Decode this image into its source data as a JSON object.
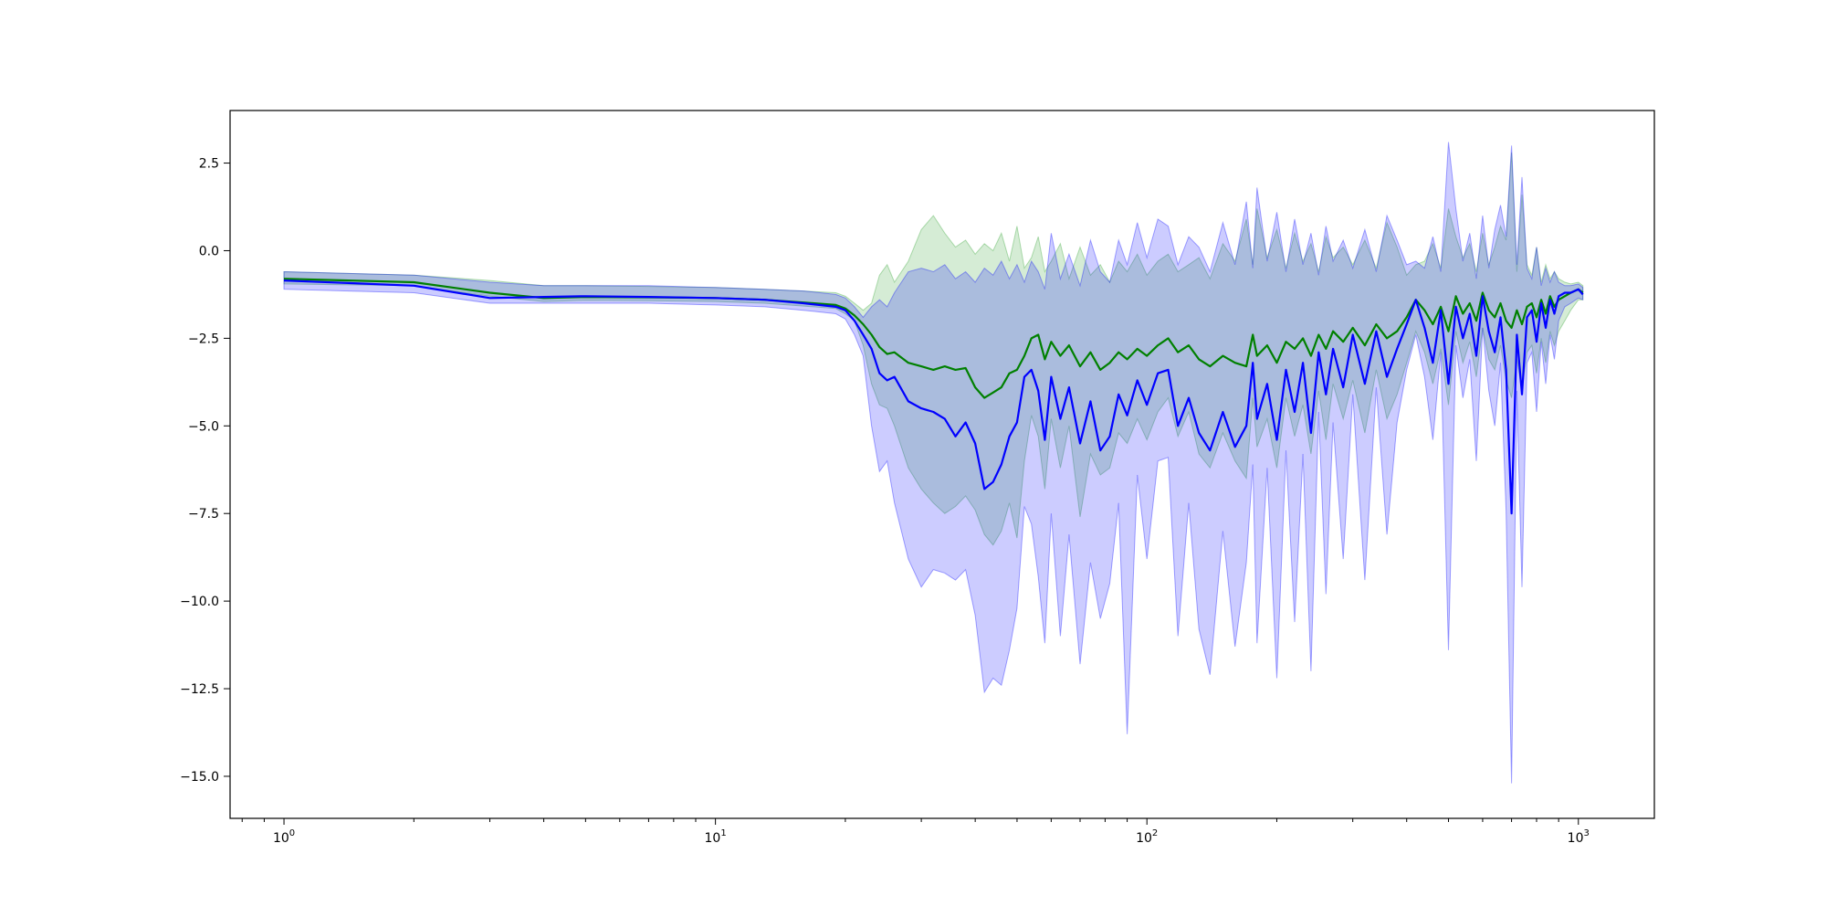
{
  "chart_data": {
    "type": "line",
    "title": "",
    "xlabel": "",
    "ylabel": "",
    "xscale": "log",
    "xlim": [
      0.75,
      1500
    ],
    "ylim": [
      -16.2,
      4.0
    ],
    "grid": false,
    "legend": "none",
    "x_ticks": [
      {
        "value": 1,
        "base": "10",
        "exp": "0"
      },
      {
        "value": 10,
        "base": "10",
        "exp": "1"
      },
      {
        "value": 100,
        "base": "10",
        "exp": "2"
      },
      {
        "value": 1000,
        "base": "10",
        "exp": "3"
      }
    ],
    "y_ticks": [
      {
        "value": 2.5,
        "label": "2.5"
      },
      {
        "value": 0.0,
        "label": "0.0"
      },
      {
        "value": -2.5,
        "label": "−2.5"
      },
      {
        "value": -5.0,
        "label": "−5.0"
      },
      {
        "value": -7.5,
        "label": "−7.5"
      },
      {
        "value": -10.0,
        "label": "−10.0"
      },
      {
        "value": -12.5,
        "label": "−12.5"
      },
      {
        "value": -15.0,
        "label": "−15.0"
      }
    ],
    "series": [
      {
        "color": "#008000",
        "band_color": "#2ca02c",
        "x": [
          1,
          2,
          3,
          4,
          5,
          7,
          10,
          13,
          16,
          19,
          20,
          21,
          22,
          23,
          24,
          25,
          26,
          28,
          30,
          32,
          34,
          36,
          38,
          40,
          42,
          44,
          46,
          48,
          50,
          52,
          54,
          56,
          58,
          60,
          63,
          66,
          70,
          74,
          78,
          82,
          86,
          90,
          95,
          100,
          106,
          112,
          118,
          125,
          132,
          140,
          150,
          160,
          170,
          176,
          180,
          190,
          200,
          210,
          220,
          230,
          240,
          250,
          260,
          270,
          285,
          300,
          320,
          340,
          360,
          380,
          400,
          420,
          440,
          460,
          480,
          500,
          520,
          540,
          560,
          580,
          600,
          620,
          640,
          660,
          680,
          700,
          720,
          740,
          760,
          780,
          800,
          820,
          840,
          860,
          880,
          900,
          930,
          960,
          1000,
          1024
        ],
        "y": [
          -0.8,
          -0.9,
          -1.2,
          -1.35,
          -1.32,
          -1.33,
          -1.35,
          -1.4,
          -1.48,
          -1.55,
          -1.65,
          -1.85,
          -2.1,
          -2.4,
          -2.75,
          -2.95,
          -2.9,
          -3.2,
          -3.3,
          -3.4,
          -3.3,
          -3.4,
          -3.35,
          -3.9,
          -4.2,
          -4.05,
          -3.9,
          -3.5,
          -3.4,
          -3.0,
          -2.5,
          -2.4,
          -3.1,
          -2.6,
          -3.0,
          -2.7,
          -3.3,
          -2.9,
          -3.4,
          -3.2,
          -2.9,
          -3.1,
          -2.8,
          -3.0,
          -2.7,
          -2.5,
          -2.9,
          -2.7,
          -3.1,
          -3.3,
          -3.0,
          -3.2,
          -3.3,
          -2.4,
          -3.0,
          -2.7,
          -3.2,
          -2.6,
          -2.8,
          -2.5,
          -3.0,
          -2.4,
          -2.8,
          -2.3,
          -2.6,
          -2.2,
          -2.7,
          -2.1,
          -2.5,
          -2.3,
          -1.9,
          -1.4,
          -1.7,
          -2.1,
          -1.6,
          -2.3,
          -1.3,
          -1.8,
          -1.5,
          -2.0,
          -1.2,
          -1.7,
          -1.9,
          -1.5,
          -2.0,
          -2.2,
          -1.7,
          -2.1,
          -1.6,
          -1.5,
          -1.9,
          -1.4,
          -1.8,
          -1.3,
          -1.6,
          -1.4,
          -1.3,
          -1.2,
          -1.1,
          -1.2
        ],
        "lower": [
          -0.95,
          -1.0,
          -1.3,
          -1.45,
          -1.42,
          -1.43,
          -1.45,
          -1.5,
          -1.58,
          -1.65,
          -1.8,
          -2.0,
          -2.7,
          -3.8,
          -4.4,
          -4.5,
          -5.0,
          -6.2,
          -6.8,
          -7.2,
          -7.5,
          -7.3,
          -7.0,
          -7.4,
          -8.1,
          -8.4,
          -8.0,
          -7.2,
          -8.2,
          -6.0,
          -4.7,
          -5.3,
          -6.8,
          -4.8,
          -6.2,
          -5.0,
          -7.6,
          -5.8,
          -6.4,
          -6.2,
          -5.2,
          -5.5,
          -4.8,
          -5.4,
          -4.6,
          -4.2,
          -5.3,
          -4.6,
          -5.8,
          -6.2,
          -5.2,
          -6.0,
          -6.5,
          -4.2,
          -5.6,
          -4.8,
          -6.2,
          -4.2,
          -5.3,
          -4.4,
          -5.8,
          -4.0,
          -5.4,
          -3.8,
          -4.8,
          -3.7,
          -5.2,
          -3.4,
          -4.8,
          -4.1,
          -3.2,
          -2.3,
          -2.9,
          -3.8,
          -2.8,
          -4.4,
          -2.3,
          -3.2,
          -2.6,
          -3.6,
          -2.2,
          -3.1,
          -3.4,
          -2.7,
          -3.7,
          -4.2,
          -3.1,
          -4.0,
          -2.9,
          -2.7,
          -3.5,
          -2.5,
          -3.2,
          -2.3,
          -2.7,
          -2.3,
          -2.0,
          -1.7,
          -1.4,
          -1.4
        ],
        "upper": [
          -0.6,
          -0.7,
          -0.85,
          -1.0,
          -1.0,
          -1.02,
          -1.05,
          -1.1,
          -1.15,
          -1.2,
          -1.3,
          -1.5,
          -1.7,
          -1.5,
          -0.7,
          -0.4,
          -0.9,
          -0.3,
          0.6,
          1.0,
          0.5,
          0.1,
          0.3,
          -0.1,
          0.2,
          0.0,
          0.5,
          -0.3,
          0.7,
          -0.5,
          -0.2,
          0.4,
          -0.6,
          -0.3,
          0.2,
          -0.8,
          0.1,
          -0.7,
          -0.4,
          -0.9,
          -0.3,
          -0.6,
          -0.1,
          -0.7,
          -0.3,
          -0.1,
          -0.6,
          -0.4,
          -0.2,
          -0.8,
          0.2,
          -0.3,
          0.9,
          -0.4,
          1.2,
          -0.2,
          0.6,
          -0.5,
          0.5,
          -0.3,
          0.2,
          -0.6,
          0.4,
          -0.2,
          0.1,
          -0.4,
          0.3,
          -0.5,
          0.8,
          0.1,
          -0.7,
          -0.4,
          -0.3,
          0.2,
          -0.5,
          1.2,
          0.4,
          -0.2,
          0.2,
          -0.6,
          0.5,
          -0.4,
          0.1,
          0.7,
          0.3,
          2.8,
          -0.6,
          1.6,
          -0.4,
          -0.7,
          0.1,
          -0.9,
          -0.4,
          -0.8,
          -0.6,
          -0.8,
          -0.9,
          -0.95,
          -0.9,
          -1.0
        ]
      },
      {
        "color": "#0000ff",
        "band_color": "#0000ff",
        "x": [
          1,
          2,
          3,
          4,
          5,
          7,
          10,
          13,
          16,
          19,
          20,
          21,
          22,
          23,
          24,
          25,
          26,
          28,
          30,
          32,
          34,
          36,
          38,
          40,
          42,
          44,
          46,
          48,
          50,
          52,
          54,
          56,
          58,
          60,
          63,
          66,
          70,
          74,
          78,
          82,
          86,
          90,
          95,
          100,
          106,
          112,
          118,
          125,
          132,
          140,
          150,
          160,
          170,
          176,
          180,
          190,
          200,
          210,
          220,
          230,
          240,
          250,
          260,
          270,
          285,
          300,
          320,
          340,
          360,
          380,
          400,
          420,
          440,
          460,
          480,
          500,
          520,
          540,
          560,
          580,
          600,
          620,
          640,
          660,
          680,
          700,
          720,
          740,
          760,
          780,
          800,
          820,
          840,
          860,
          880,
          900,
          930,
          960,
          1000,
          1024
        ],
        "y": [
          -0.85,
          -1.0,
          -1.35,
          -1.32,
          -1.3,
          -1.32,
          -1.35,
          -1.4,
          -1.5,
          -1.6,
          -1.7,
          -2.0,
          -2.4,
          -2.8,
          -3.5,
          -3.7,
          -3.6,
          -4.3,
          -4.5,
          -4.6,
          -4.8,
          -5.3,
          -4.9,
          -5.5,
          -6.8,
          -6.6,
          -6.1,
          -5.3,
          -4.9,
          -3.6,
          -3.4,
          -4.0,
          -5.4,
          -3.6,
          -4.8,
          -3.9,
          -5.5,
          -4.3,
          -5.7,
          -5.3,
          -4.1,
          -4.7,
          -3.7,
          -4.4,
          -3.5,
          -3.4,
          -5.0,
          -4.2,
          -5.2,
          -5.7,
          -4.6,
          -5.6,
          -5.0,
          -3.2,
          -4.8,
          -3.8,
          -5.4,
          -3.4,
          -4.6,
          -3.2,
          -5.2,
          -2.9,
          -4.1,
          -2.8,
          -3.9,
          -2.4,
          -3.8,
          -2.3,
          -3.6,
          -2.8,
          -2.1,
          -1.4,
          -2.2,
          -3.2,
          -1.7,
          -3.8,
          -1.6,
          -2.5,
          -1.8,
          -3.0,
          -1.3,
          -2.3,
          -2.9,
          -1.9,
          -3.4,
          -7.5,
          -2.4,
          -4.1,
          -1.9,
          -1.7,
          -2.6,
          -1.5,
          -2.2,
          -1.4,
          -1.8,
          -1.3,
          -1.2,
          -1.2,
          -1.1,
          -1.25
        ],
        "lower": [
          -1.1,
          -1.2,
          -1.5,
          -1.5,
          -1.5,
          -1.5,
          -1.55,
          -1.6,
          -1.7,
          -1.8,
          -1.95,
          -2.4,
          -3.0,
          -5.0,
          -6.3,
          -6.0,
          -7.2,
          -8.8,
          -9.6,
          -9.1,
          -9.2,
          -9.4,
          -9.1,
          -10.4,
          -12.6,
          -12.2,
          -12.4,
          -11.4,
          -10.2,
          -7.3,
          -7.8,
          -9.3,
          -11.2,
          -7.5,
          -11.0,
          -8.1,
          -11.8,
          -8.9,
          -10.5,
          -9.5,
          -7.2,
          -13.8,
          -6.4,
          -8.8,
          -6.0,
          -5.9,
          -11.0,
          -7.2,
          -10.8,
          -12.1,
          -8.0,
          -11.3,
          -8.9,
          -6.1,
          -11.2,
          -6.2,
          -12.2,
          -5.7,
          -10.6,
          -5.8,
          -12.0,
          -4.6,
          -9.8,
          -4.9,
          -8.8,
          -4.1,
          -9.4,
          -3.9,
          -8.1,
          -4.9,
          -3.4,
          -2.4,
          -3.6,
          -5.4,
          -2.9,
          -11.4,
          -2.7,
          -4.2,
          -3.1,
          -6.0,
          -2.2,
          -4.0,
          -5.0,
          -3.2,
          -7.4,
          -15.2,
          -4.0,
          -9.6,
          -3.2,
          -2.9,
          -4.6,
          -2.6,
          -3.8,
          -2.4,
          -3.1,
          -2.0,
          -1.6,
          -1.5,
          -1.35,
          -1.4
        ],
        "upper": [
          -0.6,
          -0.7,
          -0.9,
          -1.0,
          -1.0,
          -1.0,
          -1.05,
          -1.1,
          -1.15,
          -1.25,
          -1.35,
          -1.6,
          -1.9,
          -1.6,
          -1.4,
          -1.6,
          -1.2,
          -0.6,
          -0.5,
          -0.6,
          -0.4,
          -0.8,
          -0.6,
          -0.9,
          -0.5,
          -0.7,
          -0.3,
          -0.8,
          -0.4,
          -0.9,
          -0.3,
          -0.6,
          -1.1,
          0.5,
          -0.8,
          -0.1,
          -1.0,
          0.3,
          -0.6,
          -0.9,
          0.3,
          -0.4,
          0.8,
          -0.2,
          0.9,
          0.7,
          -0.4,
          0.4,
          0.1,
          -0.6,
          0.8,
          -0.4,
          1.4,
          -0.5,
          1.8,
          -0.3,
          1.1,
          -0.6,
          0.9,
          -0.4,
          0.5,
          -0.7,
          0.7,
          -0.3,
          0.3,
          -0.5,
          0.6,
          -0.6,
          1.0,
          0.3,
          -0.4,
          -0.3,
          -0.5,
          0.4,
          -0.6,
          3.1,
          1.2,
          -0.3,
          0.5,
          -0.8,
          1.0,
          -0.5,
          0.6,
          1.3,
          0.4,
          3.0,
          -0.4,
          2.1,
          -0.5,
          -0.8,
          0.1,
          -1.0,
          -0.5,
          -0.9,
          -0.6,
          -0.9,
          -1.0,
          -1.0,
          -0.95,
          -1.05
        ]
      }
    ]
  }
}
